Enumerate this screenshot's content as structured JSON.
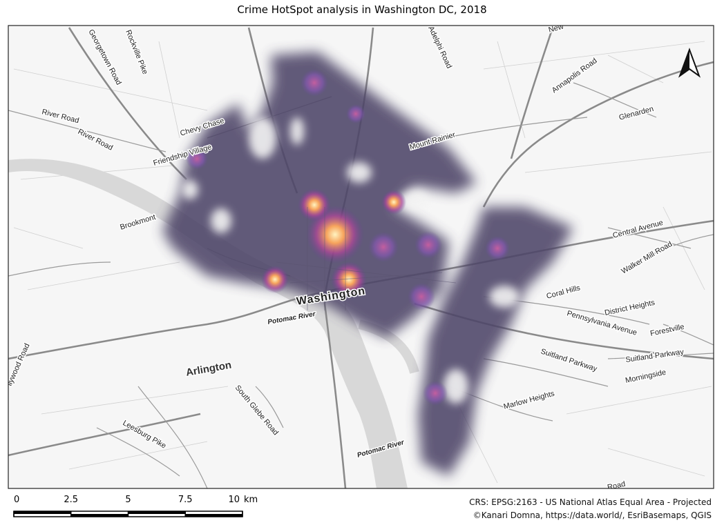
{
  "header": {
    "title": "Crime HotSpot analysis in Washington DC, 2018"
  },
  "map": {
    "labels": [
      "Georgetown Road",
      "Rockville Pike",
      "River Road",
      "River Road",
      "Chevy Chase",
      "Friendship Village",
      "Brookmont",
      "Mount Rainier",
      "Adelphi Road",
      "Annapolis Road",
      "Glenarden",
      "New",
      "Central Avenue",
      "Walker Mill Road",
      "Coral Hills",
      "District Heights",
      "Pennsylvania Avenue",
      "Forestville",
      "Suitland Parkway",
      "Suitland Parkway",
      "Morningside",
      "Marlow Heights",
      "Washington",
      "Potomac River",
      "Arlington",
      "South Glebe Road",
      "Leesburg Pike",
      "Potomac River",
      "llywood Road",
      "Road"
    ]
  },
  "scale_bar": {
    "ticks": [
      0,
      2.5,
      5,
      7.5,
      10
    ],
    "unit": "km"
  },
  "footer": {
    "crs": "CRS: EPSG:2163 - US National Atlas Equal Area - Projected",
    "credits": "©Kanari Domna, https://data.world/, EsriBasemaps, QGIS"
  }
}
